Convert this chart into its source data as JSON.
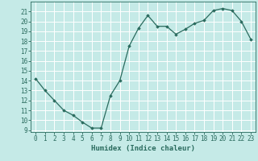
{
  "x": [
    0,
    1,
    2,
    3,
    4,
    5,
    6,
    7,
    8,
    9,
    10,
    11,
    12,
    13,
    14,
    15,
    16,
    17,
    18,
    19,
    20,
    21,
    22,
    23
  ],
  "y": [
    14.2,
    13.0,
    12.0,
    11.0,
    10.5,
    9.8,
    9.2,
    9.2,
    12.5,
    14.0,
    17.5,
    19.3,
    20.6,
    19.5,
    19.5,
    18.7,
    19.2,
    19.8,
    20.1,
    21.1,
    21.3,
    21.1,
    20.0,
    18.2
  ],
  "xlabel": "Humidex (Indice chaleur)",
  "ylabel": "",
  "xlim": [
    -0.5,
    23.5
  ],
  "ylim": [
    8.8,
    22.0
  ],
  "yticks": [
    9,
    10,
    11,
    12,
    13,
    14,
    15,
    16,
    17,
    18,
    19,
    20,
    21
  ],
  "xticks": [
    0,
    1,
    2,
    3,
    4,
    5,
    6,
    7,
    8,
    9,
    10,
    11,
    12,
    13,
    14,
    15,
    16,
    17,
    18,
    19,
    20,
    21,
    22,
    23
  ],
  "line_color": "#2a6b5e",
  "marker": "D",
  "marker_size": 1.8,
  "bg_color": "#c5eae7",
  "grid_color": "#ffffff",
  "xlabel_fontsize": 6.5,
  "tick_fontsize": 5.5
}
